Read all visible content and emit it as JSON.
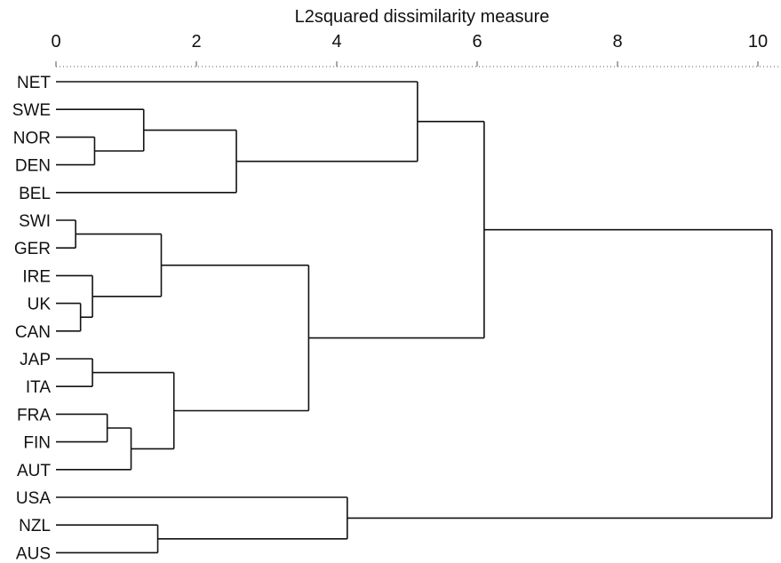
{
  "chart_data": {
    "type": "dendrogram",
    "xlabel": "L2squared dissimilarity measure",
    "xlim": [
      0,
      10.2
    ],
    "ticks": [
      0,
      2,
      4,
      6,
      8,
      10
    ],
    "tick_labels": [
      "0",
      "2",
      "4",
      "6",
      "8",
      "10"
    ],
    "leaves": [
      "NET",
      "SWE",
      "NOR",
      "DEN",
      "BEL",
      "SWI",
      "GER",
      "IRE",
      "UK",
      "CAN",
      "JAP",
      "ITA",
      "FRA",
      "FIN",
      "AUT",
      "USA",
      "NZL",
      "AUS"
    ],
    "merges": [
      {
        "left": "SWI",
        "right": "GER",
        "height": 0.28
      },
      {
        "left": "UK",
        "right": "CAN",
        "height": 0.35
      },
      {
        "left": "IRE",
        "right": "UK+CAN",
        "height": 0.52
      },
      {
        "left": "SWI+GER",
        "right": "IRE+UK+CAN",
        "height": 1.5
      },
      {
        "left": "NOR",
        "right": "DEN",
        "height": 0.55
      },
      {
        "left": "SWE",
        "right": "NOR+DEN",
        "height": 1.25
      },
      {
        "left": "SWE+NOR+DEN",
        "right": "BEL",
        "height": 2.57
      },
      {
        "left": "NET",
        "right": "SWE+NOR+DEN+BEL",
        "height": 5.15
      },
      {
        "left": "JAP",
        "right": "ITA",
        "height": 0.52
      },
      {
        "left": "FRA",
        "right": "FIN",
        "height": 0.73
      },
      {
        "left": "FRA+FIN",
        "right": "AUT",
        "height": 1.07
      },
      {
        "left": "JAP+ITA",
        "right": "FRA+FIN+AUT",
        "height": 1.68
      },
      {
        "left": "SWI+GER+IRE+UK+CAN",
        "right": "JAP+ITA+FRA+FIN+AUT",
        "height": 3.6
      },
      {
        "left": "NET+SWE+NOR+DEN+BEL",
        "right": "SWI+GER+IRE+UK+CAN+JAP+ITA+FRA+FIN+AUT",
        "height": 6.1
      },
      {
        "left": "NZL",
        "right": "AUS",
        "height": 1.45
      },
      {
        "left": "USA",
        "right": "NZL+AUS",
        "height": 4.15
      },
      {
        "left": "NET+SWE+NOR+DEN+BEL+SWI+GER+IRE+UK+CAN+JAP+ITA+FRA+FIN+AUT",
        "right": "USA+NZL+AUS",
        "height": 10.2
      }
    ]
  }
}
